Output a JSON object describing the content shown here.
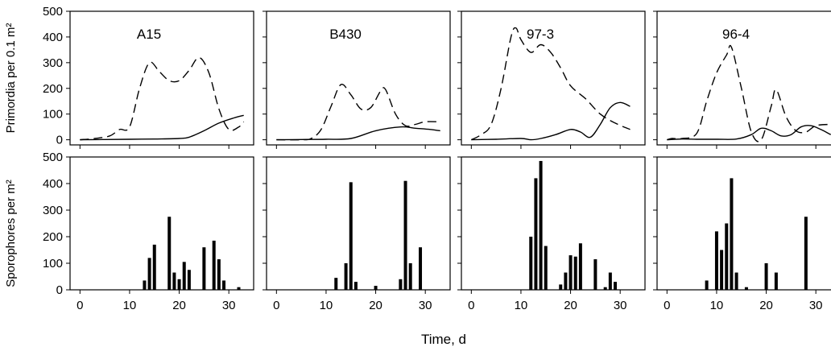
{
  "figure": {
    "xlabel": "Time, d",
    "ylabel_top": "Primordia per 0.1 m²",
    "ylabel_bottom": "Sporophores per m²",
    "x_ticks": [
      0,
      10,
      20,
      30
    ],
    "y_ticks": [
      0,
      100,
      200,
      300,
      400,
      500
    ],
    "xlim": [
      -2,
      35
    ],
    "ylim": [
      -20,
      500
    ]
  },
  "chart_data": [
    {
      "type": "line",
      "panel": "A15",
      "title": "A15",
      "xlim": [
        -2,
        35
      ],
      "ylim": [
        -20,
        500
      ],
      "series": [
        {
          "style": "dashed",
          "x": [
            0,
            3,
            6,
            8,
            10,
            12,
            14,
            16,
            18,
            20,
            22,
            24,
            26,
            28,
            30,
            32,
            33
          ],
          "y": [
            0,
            5,
            15,
            40,
            50,
            200,
            300,
            265,
            230,
            230,
            270,
            320,
            260,
            120,
            40,
            50,
            70
          ]
        },
        {
          "style": "solid",
          "x": [
            0,
            5,
            10,
            15,
            20,
            22,
            25,
            28,
            31,
            33
          ],
          "y": [
            0,
            1,
            2,
            3,
            5,
            10,
            35,
            65,
            85,
            95
          ]
        }
      ]
    },
    {
      "type": "line",
      "panel": "B430",
      "title": "B430",
      "xlim": [
        -2,
        35
      ],
      "ylim": [
        -20,
        500
      ],
      "series": [
        {
          "style": "dashed",
          "x": [
            0,
            5,
            7,
            9,
            11,
            13,
            15,
            17,
            19,
            21,
            22,
            24,
            26,
            28,
            30,
            33
          ],
          "y": [
            0,
            0,
            5,
            40,
            130,
            215,
            175,
            120,
            125,
            190,
            195,
            100,
            55,
            60,
            70,
            70
          ]
        },
        {
          "style": "solid",
          "x": [
            0,
            5,
            10,
            15,
            20,
            25,
            28,
            31,
            33
          ],
          "y": [
            0,
            1,
            2,
            5,
            35,
            50,
            45,
            40,
            35
          ]
        }
      ]
    },
    {
      "type": "line",
      "panel": "97-3",
      "title": "97-3",
      "xlim": [
        -2,
        35
      ],
      "ylim": [
        -20,
        500
      ],
      "series": [
        {
          "style": "dashed",
          "x": [
            0,
            2,
            4,
            6,
            8,
            9,
            10,
            12,
            14,
            16,
            18,
            20,
            23,
            26,
            29,
            32
          ],
          "y": [
            0,
            20,
            60,
            200,
            400,
            435,
            390,
            340,
            370,
            340,
            280,
            210,
            160,
            100,
            65,
            40
          ]
        },
        {
          "style": "solid",
          "x": [
            0,
            5,
            10,
            12,
            14,
            17,
            20,
            22,
            24,
            26,
            28,
            30,
            32
          ],
          "y": [
            0,
            2,
            5,
            0,
            5,
            20,
            40,
            30,
            10,
            60,
            125,
            145,
            130
          ]
        }
      ]
    },
    {
      "type": "line",
      "panel": "96-4",
      "title": "96-4",
      "xlim": [
        -2,
        35
      ],
      "ylim": [
        -20,
        500
      ],
      "series": [
        {
          "style": "dashed",
          "x": [
            0,
            1,
            3,
            6,
            8,
            10,
            12,
            13,
            15,
            17,
            19,
            21,
            22,
            24,
            26,
            28,
            30,
            33
          ],
          "y": [
            0,
            5,
            5,
            25,
            150,
            260,
            330,
            360,
            200,
            30,
            0,
            130,
            195,
            90,
            35,
            30,
            55,
            60
          ]
        },
        {
          "style": "solid",
          "x": [
            0,
            3,
            6,
            10,
            14,
            17,
            19,
            21,
            23,
            25,
            27,
            29,
            31,
            33
          ],
          "y": [
            0,
            3,
            2,
            2,
            3,
            20,
            45,
            35,
            15,
            20,
            50,
            55,
            40,
            20
          ]
        }
      ]
    },
    {
      "type": "bar",
      "panel": "A15",
      "xlim": [
        -2,
        35
      ],
      "ylim": [
        0,
        500
      ],
      "x": [
        13,
        14,
        15,
        18,
        19,
        20,
        21,
        22,
        25,
        27,
        28,
        29,
        32
      ],
      "values": [
        35,
        120,
        170,
        275,
        65,
        40,
        105,
        75,
        160,
        185,
        115,
        35,
        10
      ]
    },
    {
      "type": "bar",
      "panel": "B430",
      "xlim": [
        -2,
        35
      ],
      "ylim": [
        0,
        500
      ],
      "x": [
        12,
        14,
        15,
        16,
        20,
        25,
        26,
        27,
        29
      ],
      "values": [
        45,
        100,
        405,
        30,
        15,
        40,
        410,
        100,
        160
      ]
    },
    {
      "type": "bar",
      "panel": "97-3",
      "xlim": [
        -2,
        35
      ],
      "ylim": [
        0,
        500
      ],
      "x": [
        12,
        13,
        14,
        15,
        18,
        19,
        20,
        21,
        22,
        25,
        27,
        28,
        29
      ],
      "values": [
        200,
        420,
        485,
        165,
        20,
        65,
        130,
        125,
        175,
        115,
        10,
        65,
        30
      ]
    },
    {
      "type": "bar",
      "panel": "96-4",
      "xlim": [
        -2,
        35
      ],
      "ylim": [
        0,
        500
      ],
      "x": [
        8,
        10,
        11,
        12,
        13,
        14,
        16,
        20,
        22,
        28
      ],
      "values": [
        35,
        220,
        150,
        250,
        420,
        65,
        10,
        100,
        65,
        275
      ]
    }
  ]
}
